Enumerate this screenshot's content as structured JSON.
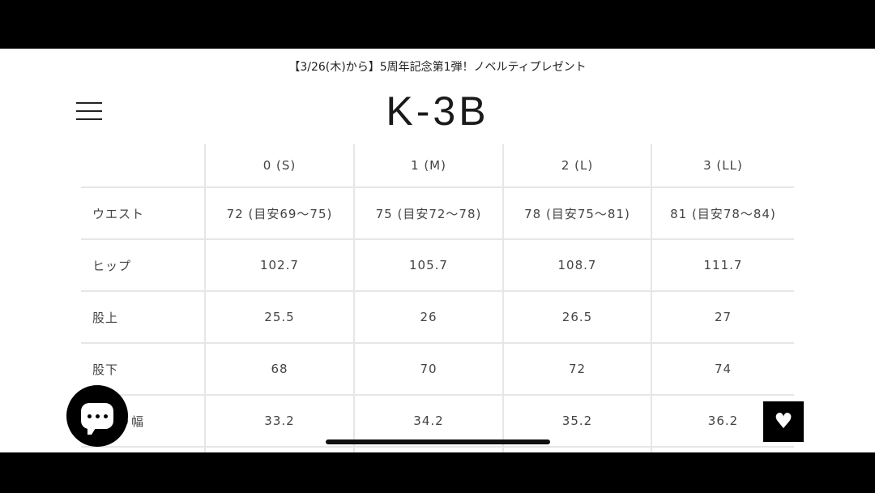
{
  "announcement": "【3/26(木)から】5周年記念第1弾！ノベルティプレゼント",
  "logo": "K-3B",
  "size_table": {
    "headers": [
      "",
      "0 (S)",
      "1 (M)",
      "2 (L)",
      "3 (LL)"
    ],
    "rows": [
      {
        "label": "ウエスト",
        "values": [
          "72 (目安69〜75)",
          "75 (目安72〜78)",
          "78 (目安75〜81)",
          "81 (目安78〜84)"
        ]
      },
      {
        "label": "ヒップ",
        "values": [
          "102.7",
          "105.7",
          "108.7",
          "111.7"
        ]
      },
      {
        "label": "股上",
        "values": [
          "25.5",
          "26",
          "26.5",
          "27"
        ]
      },
      {
        "label": "股下",
        "values": [
          "68",
          "70",
          "72",
          "74"
        ]
      },
      {
        "label": "わたり幅",
        "values": [
          "33.2",
          "34.2",
          "35.2",
          "36.2"
        ]
      }
    ]
  },
  "icons": {
    "menu": "hamburger-icon",
    "chat": "chat-bubble-icon",
    "favorite": "heart-icon"
  }
}
